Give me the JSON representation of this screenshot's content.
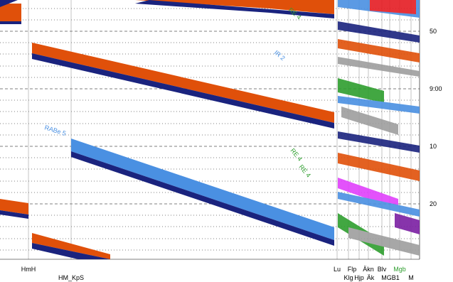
{
  "time_axis": {
    "labels": [
      "50",
      "9:00",
      "10",
      "20"
    ]
  },
  "stations": {
    "top_row": [
      "HmH",
      "Lu",
      "Flp",
      "Äkn",
      "Blv",
      "Mgb"
    ],
    "bottom_row": [
      "HM_KpS",
      "Klg",
      "Hjp",
      "Äk",
      "MGB1",
      "M"
    ]
  },
  "train_labels": [
    "RABe 5",
    "RE 4",
    "RE 4",
    "IR 2",
    "RE 4"
  ]
}
